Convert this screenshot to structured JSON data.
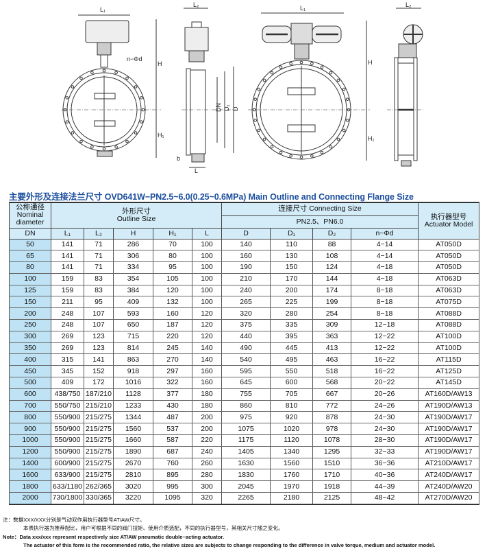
{
  "drawing_labels": {
    "L1": "L₁",
    "L2": "L₂",
    "H": "H",
    "H1": "H₁",
    "DN": "DN",
    "D1": "D₁",
    "D": "D",
    "L": "L",
    "b": "b",
    "nd": "n−Φd"
  },
  "title": "主要外形及连接法兰尺寸 OVD641W−PN2.5~6.0(0.25~0.6MPa)  Main Outline and Connecting Flange Size",
  "table": {
    "header": {
      "dn_cn": "公称通径",
      "dn_en1": "Nominal",
      "dn_en2": "diameter",
      "dn": "DN",
      "outline_cn": "外形尺寸",
      "outline_en": "Outline Size",
      "connect": "连接尺寸 Connecting Size",
      "pn": "PN2.5、PN6.0",
      "actuator_cn": "执行器型号",
      "actuator_en": "Actuator Model",
      "cols": [
        "L₁",
        "L₂",
        "H",
        "H₁",
        "L",
        "D",
        "D₁",
        "D₂",
        "n−Φd"
      ]
    },
    "rows": [
      [
        "50",
        "141",
        "71",
        "286",
        "70",
        "100",
        "140",
        "110",
        "88",
        "4−14",
        "AT050D"
      ],
      [
        "65",
        "141",
        "71",
        "306",
        "80",
        "100",
        "160",
        "130",
        "108",
        "4−14",
        "AT050D"
      ],
      [
        "80",
        "141",
        "71",
        "334",
        "95",
        "100",
        "190",
        "150",
        "124",
        "4−18",
        "AT050D"
      ],
      [
        "100",
        "159",
        "83",
        "354",
        "105",
        "100",
        "210",
        "170",
        "144",
        "4−18",
        "AT063D"
      ],
      [
        "125",
        "159",
        "83",
        "384",
        "120",
        "100",
        "240",
        "200",
        "174",
        "8−18",
        "AT063D"
      ],
      [
        "150",
        "211",
        "95",
        "409",
        "132",
        "100",
        "265",
        "225",
        "199",
        "8−18",
        "AT075D"
      ],
      [
        "200",
        "248",
        "107",
        "593",
        "160",
        "120",
        "320",
        "280",
        "254",
        "8−18",
        "AT088D"
      ],
      [
        "250",
        "248",
        "107",
        "650",
        "187",
        "120",
        "375",
        "335",
        "309",
        "12−18",
        "AT088D"
      ],
      [
        "300",
        "269",
        "123",
        "715",
        "220",
        "120",
        "440",
        "395",
        "363",
        "12−22",
        "AT100D"
      ],
      [
        "350",
        "269",
        "123",
        "814",
        "245",
        "140",
        "490",
        "445",
        "413",
        "12−22",
        "AT100D"
      ],
      [
        "400",
        "315",
        "141",
        "863",
        "270",
        "140",
        "540",
        "495",
        "463",
        "16−22",
        "AT115D"
      ],
      [
        "450",
        "345",
        "152",
        "918",
        "297",
        "160",
        "595",
        "550",
        "518",
        "16−22",
        "AT125D"
      ],
      [
        "500",
        "409",
        "172",
        "1016",
        "322",
        "160",
        "645",
        "600",
        "568",
        "20−22",
        "AT145D"
      ],
      [
        "600",
        "438/750",
        "187/210",
        "1128",
        "377",
        "180",
        "755",
        "705",
        "667",
        "20−26",
        "AT160D/AW13"
      ],
      [
        "700",
        "550/750",
        "215/210",
        "1233",
        "430",
        "180",
        "860",
        "810",
        "772",
        "24−26",
        "AT190D/AW13"
      ],
      [
        "800",
        "550/900",
        "215/275",
        "1344",
        "487",
        "200",
        "975",
        "920",
        "878",
        "24−30",
        "AT190D/AW17"
      ],
      [
        "900",
        "550/900",
        "215/275",
        "1560",
        "537",
        "200",
        "1075",
        "1020",
        "978",
        "24−30",
        "AT190D/AW17"
      ],
      [
        "1000",
        "550/900",
        "215/275",
        "1660",
        "587",
        "220",
        "1175",
        "1120",
        "1078",
        "28−30",
        "AT190D/AW17"
      ],
      [
        "1200",
        "550/900",
        "215/275",
        "1890",
        "687",
        "240",
        "1405",
        "1340",
        "1295",
        "32−33",
        "AT190D/AW17"
      ],
      [
        "1400",
        "600/900",
        "215/275",
        "2670",
        "760",
        "260",
        "1630",
        "1560",
        "1510",
        "36−36",
        "AT210D/AW17"
      ],
      [
        "1600",
        "633/900",
        "215/275",
        "2810",
        "895",
        "280",
        "1830",
        "1760",
        "1710",
        "40−36",
        "AT240D/AW17"
      ],
      [
        "1800",
        "633/1180",
        "262/365",
        "3020",
        "995",
        "300",
        "2045",
        "1970",
        "1918",
        "44−39",
        "AT240D/AW20"
      ],
      [
        "2000",
        "730/1800",
        "330/365",
        "3220",
        "1095",
        "320",
        "2265",
        "2180",
        "2125",
        "48−42",
        "AT270D/AW20"
      ]
    ]
  },
  "notes": {
    "cn1": "注：数据XXX/XXX分别是气动双作用执行器型号AT/AW尺寸。",
    "cn2": "本表执行器为推荐配比，用户可根据不同的阀门扭矩、使用介质选配，不同的执行器型号，其相关尺寸随之变化。",
    "en1": "Note：Data xxx/xxx represent respectively size AT/AW pneumatic double−acting actuator.",
    "en2": "The actuator of this form is the recommended ratio, the relative sizes are subjects to change responding to the difference in valve torque, medium and actuator model."
  },
  "colors": {
    "title": "#1c4f9e",
    "header_bg": "#d3ecf8",
    "dn_column_bg": "#bfe3f5"
  }
}
